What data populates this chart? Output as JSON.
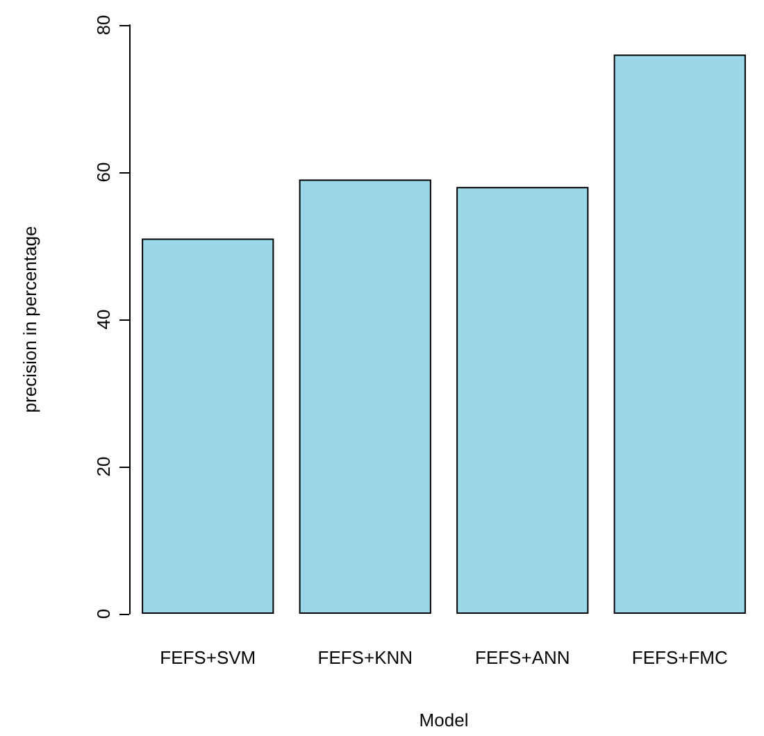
{
  "chart_data": {
    "type": "bar",
    "xlabel": "Model",
    "ylabel": "precision in percentage",
    "categories": [
      "FEFS+SVM",
      "FEFS+KNN",
      "FEFS+ANN",
      "FEFS+FMC"
    ],
    "values": [
      51,
      59,
      58,
      76
    ],
    "color": "#9ad8e9",
    "ylim": [
      0,
      80
    ],
    "yticks": [
      0,
      20,
      40,
      60,
      80
    ],
    "grid": false
  }
}
